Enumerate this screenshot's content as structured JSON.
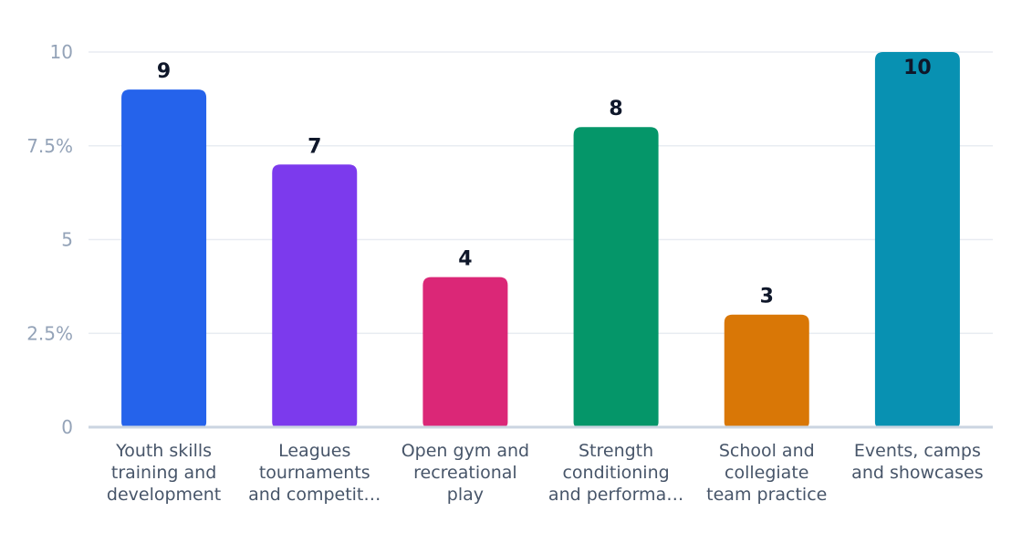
{
  "chart_data": {
    "type": "bar",
    "categories": [
      [
        "Youth skills",
        "training and",
        "development"
      ],
      [
        "Leagues",
        "tournaments",
        "and competit…"
      ],
      [
        "Open gym and",
        "recreational",
        "play"
      ],
      [
        "Strength",
        "conditioning",
        "and performa…"
      ],
      [
        "School and",
        "collegiate",
        "team practice"
      ],
      [
        "Events, camps",
        "and showcases"
      ]
    ],
    "values": [
      9,
      7,
      4,
      8,
      3,
      10
    ],
    "value_labels": [
      "9",
      "7",
      "4",
      "8",
      "3",
      "10"
    ],
    "colors": [
      "#2563eb",
      "#7c3aed",
      "#db2777",
      "#059669",
      "#d97706",
      "#0891b2"
    ],
    "ylim": [
      0,
      10
    ],
    "yticks": [
      0,
      2.5,
      5,
      7.5,
      10
    ],
    "ytick_labels": [
      "0",
      "2.5%",
      "5",
      "7.5%",
      "10"
    ],
    "grid": true,
    "title": "",
    "xlabel": "",
    "ylabel": ""
  }
}
